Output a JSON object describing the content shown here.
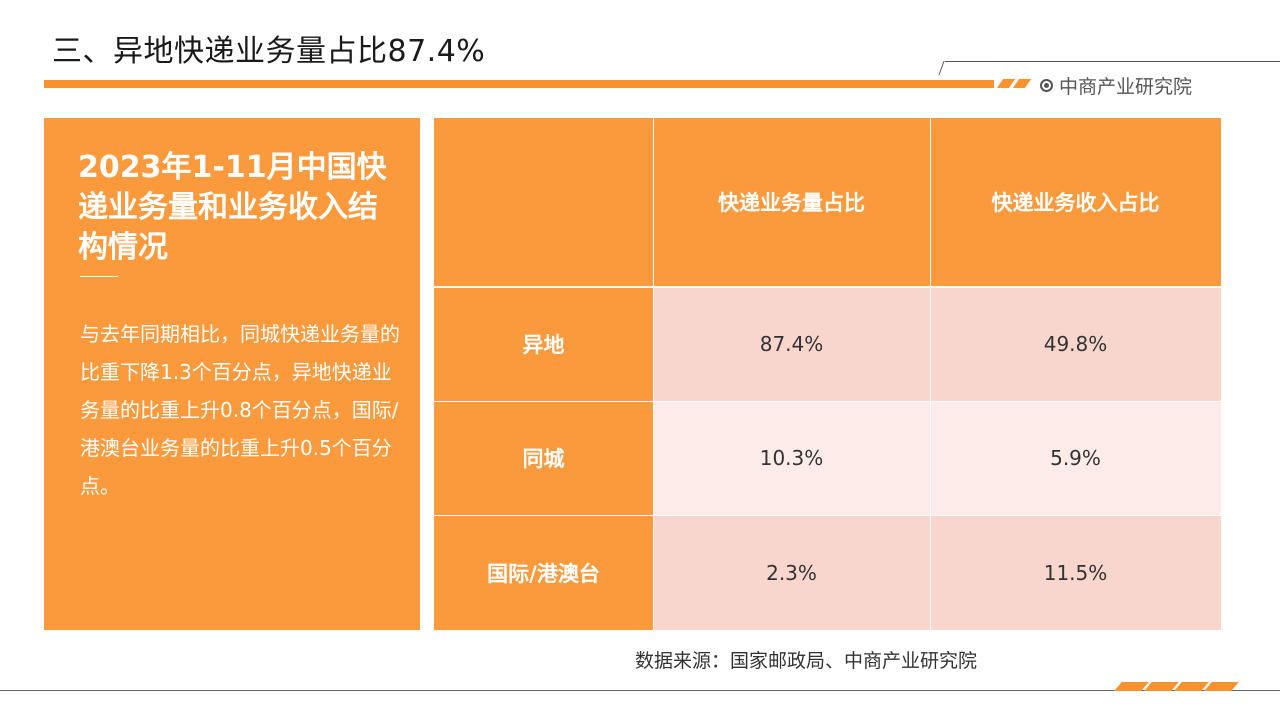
{
  "header": {
    "title": "三、异地快递业务量占比87.4%",
    "brand": "中商产业研究院",
    "brand_icon": "target-icon",
    "accent_color": "#f7922e"
  },
  "left_panel": {
    "title": "2023年1-11月中国快递业务量和业务收入结构情况",
    "body": "与去年同期相比，同城快递业务量的比重下降1.3个百分点，异地快递业务量的比重上升0.8个百分点，国际/港澳台业务量的比重上升0.5个百分点。"
  },
  "table": {
    "columns": [
      "",
      "快递业务量占比",
      "快递业务收入占比"
    ],
    "rows": [
      {
        "label": "异地",
        "volume_share": "87.4%",
        "revenue_share": "49.8%"
      },
      {
        "label": "同城",
        "volume_share": "10.3%",
        "revenue_share": "5.9%"
      },
      {
        "label": "国际/港澳台",
        "volume_share": "2.3%",
        "revenue_share": "11.5%"
      }
    ]
  },
  "source": "数据来源：国家邮政局、中商产业研究院"
}
